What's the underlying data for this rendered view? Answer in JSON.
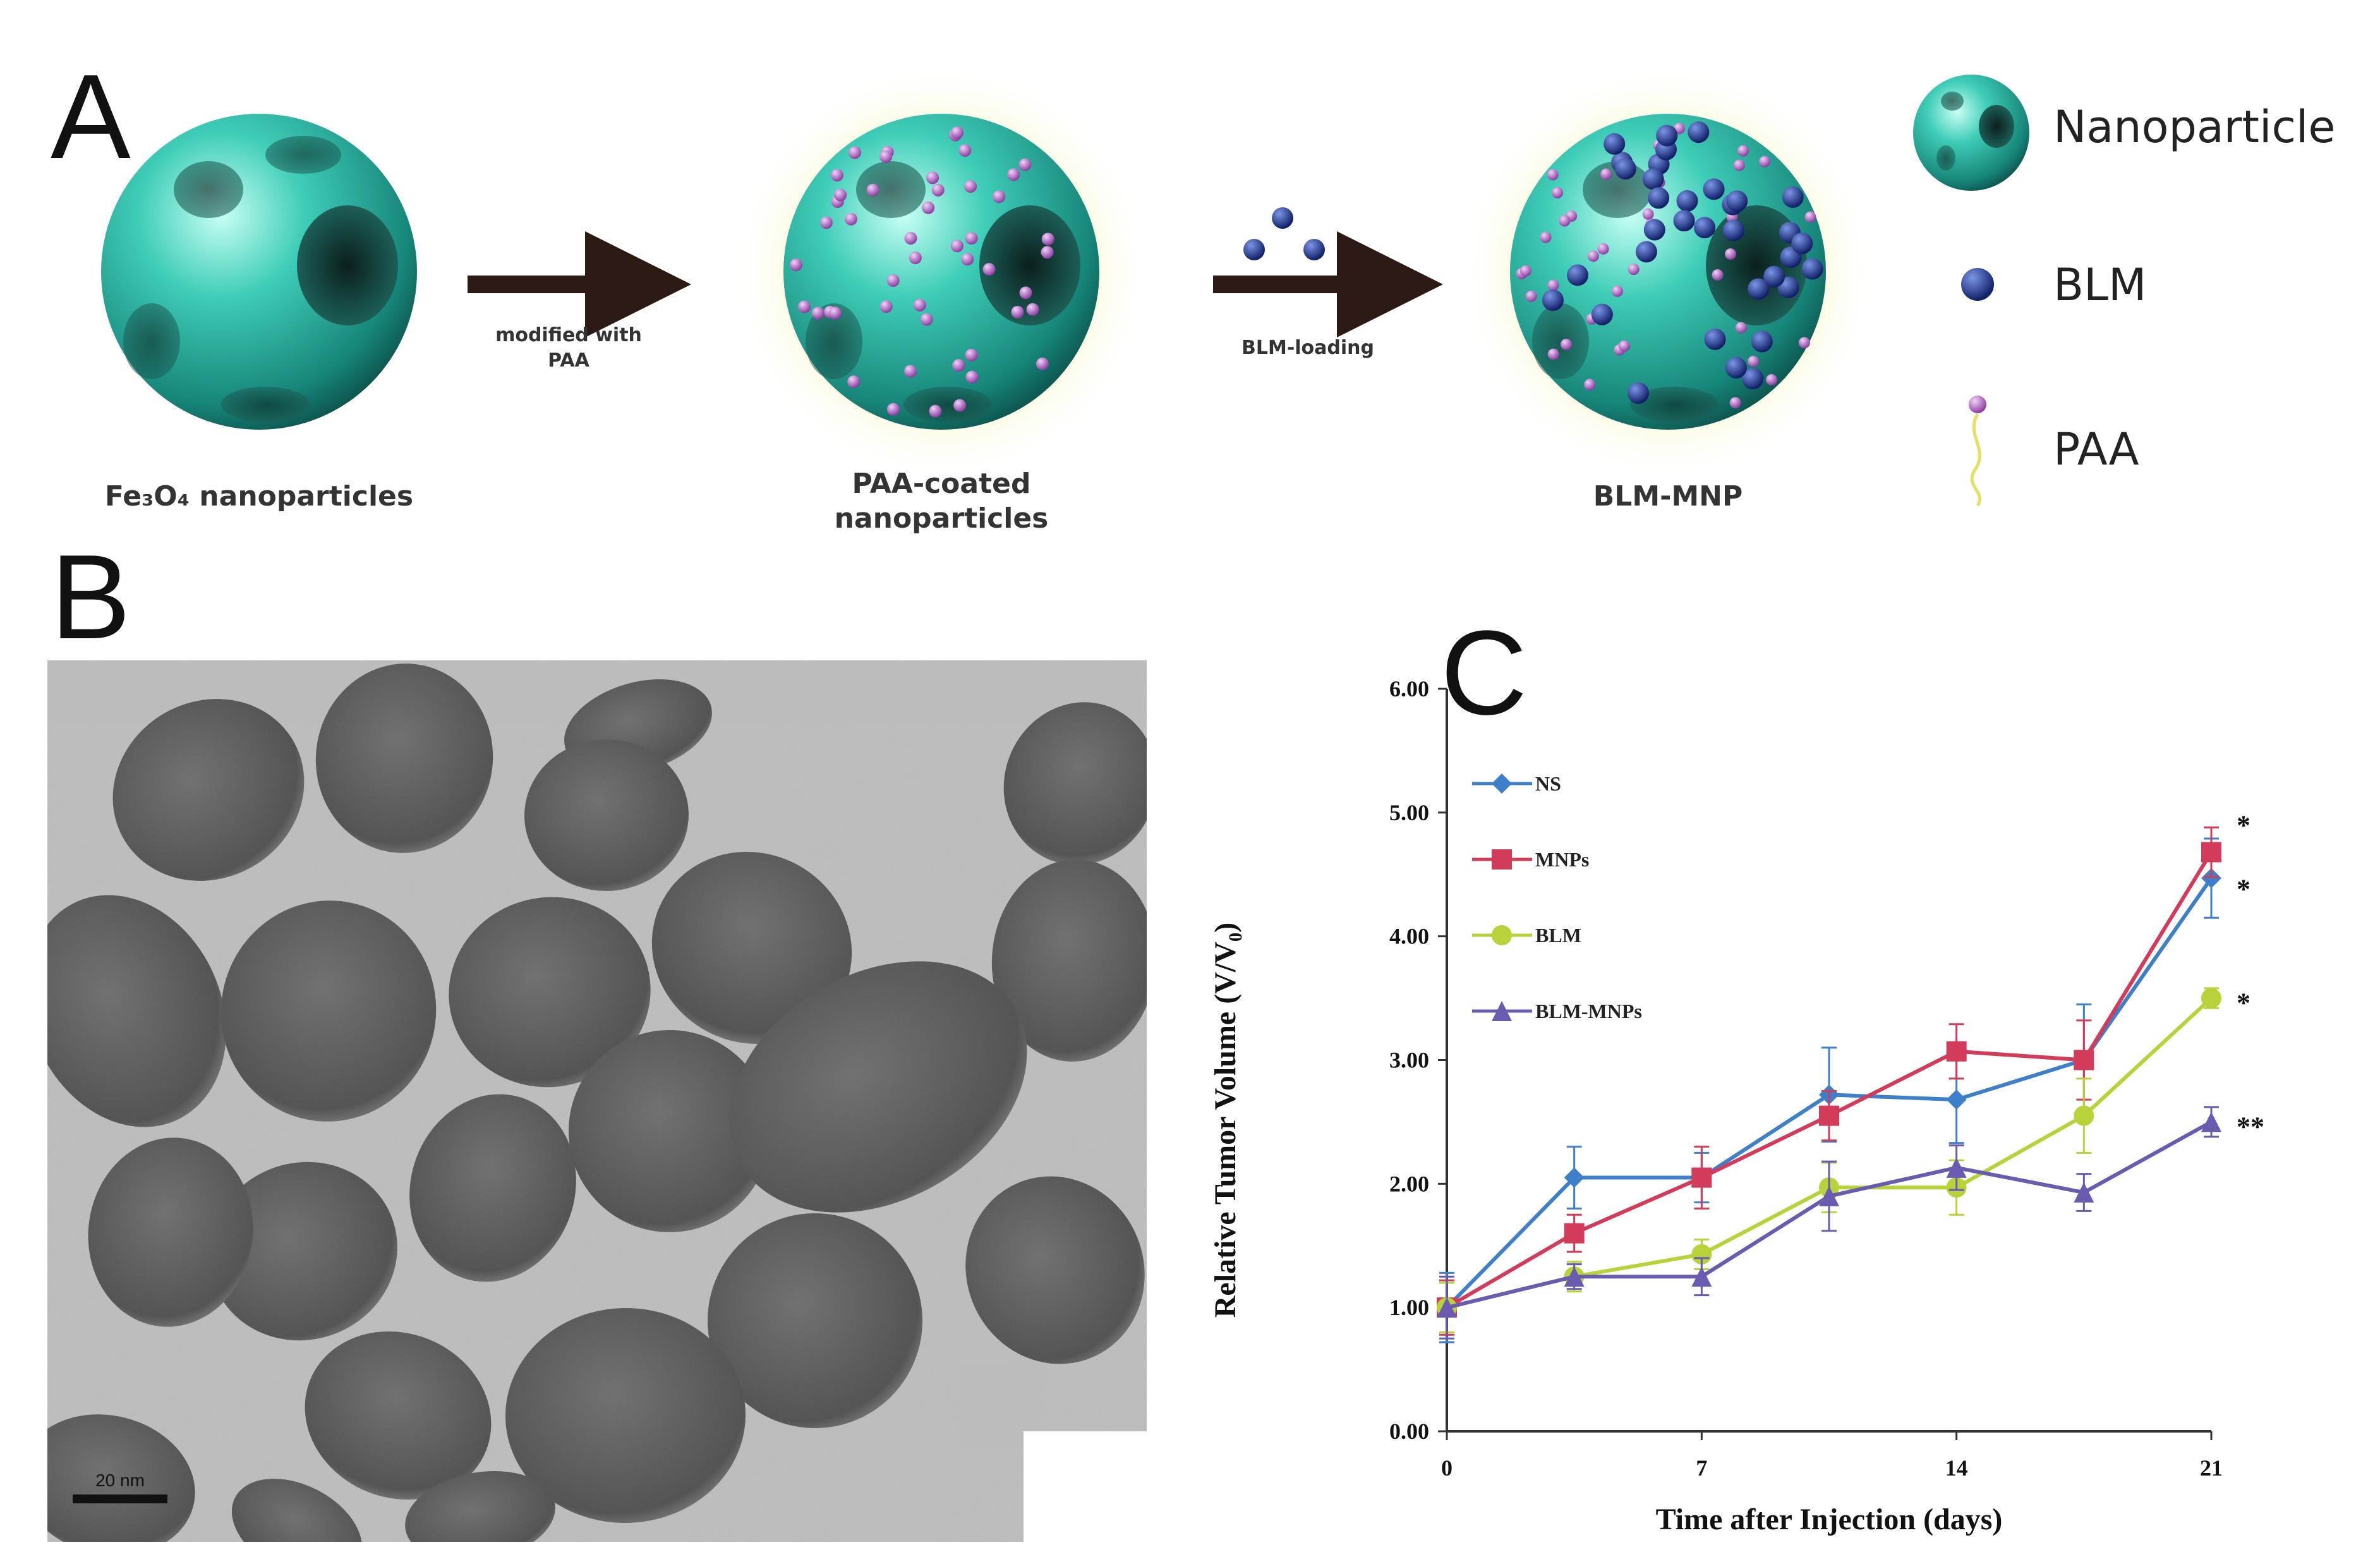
{
  "panels": {
    "a": "A",
    "b": "B",
    "c": "C"
  },
  "schematic": {
    "step1": "Fe₃O₄ nanoparticles",
    "step2_line1": "PAA-coated",
    "step2_line2": "nanoparticles",
    "step3": "BLM-MNP",
    "arrow1_line1": "modified with",
    "arrow1_line2": "PAA",
    "arrow2": "BLM-loading"
  },
  "legend": {
    "nanoparticle": "Nanoparticle",
    "blm": "BLM",
    "paa": "PAA"
  },
  "tem": {
    "scale_bar": "20 nm"
  },
  "colors": {
    "sphere": "#2bb5a4",
    "sphere_dark": "#0e5e57",
    "blm_bead": "#1b2f86",
    "paa_bead": "#b46bc6",
    "NS": "#3d7fc8",
    "MNPs": "#d23b5a",
    "BLM": "#b8d23a",
    "BLM-MNPs": "#6a5bb0"
  },
  "chart_data": {
    "type": "line",
    "xlabel": "Time after Injection (days)",
    "ylabel": "Relative Tumor Volume (V/V₀)",
    "xlim": [
      0,
      21
    ],
    "ylim": [
      0,
      6
    ],
    "x_ticks": [
      0,
      7,
      14,
      21
    ],
    "y_ticks": [
      "0.00",
      "1.00",
      "2.00",
      "3.00",
      "4.00",
      "5.00",
      "6.00"
    ],
    "x": [
      0,
      3.5,
      7,
      10.5,
      14,
      17.5,
      21
    ],
    "legend_position": "top-left",
    "series": [
      {
        "name": "NS",
        "marker": "diamond",
        "values": [
          1.0,
          2.05,
          2.05,
          2.72,
          2.68,
          3.0,
          4.47
        ],
        "errors": [
          0.28,
          0.25,
          0.2,
          0.38,
          0.35,
          0.45,
          0.32
        ],
        "sig": "*"
      },
      {
        "name": "MNPs",
        "marker": "square",
        "values": [
          1.0,
          1.6,
          2.05,
          2.55,
          3.07,
          3.0,
          4.68
        ],
        "errors": [
          0.22,
          0.15,
          0.25,
          0.2,
          0.22,
          0.32,
          0.2
        ],
        "sig": "*"
      },
      {
        "name": "BLM",
        "marker": "circle",
        "values": [
          1.0,
          1.25,
          1.43,
          1.97,
          1.97,
          2.55,
          3.5
        ],
        "errors": [
          0.2,
          0.12,
          0.12,
          0.2,
          0.22,
          0.3,
          0.08
        ],
        "sig": "*"
      },
      {
        "name": "BLM-MNPs",
        "marker": "triangle",
        "values": [
          1.0,
          1.25,
          1.25,
          1.9,
          2.13,
          1.93,
          2.5
        ],
        "errors": [
          0.25,
          0.1,
          0.15,
          0.28,
          0.18,
          0.15,
          0.12
        ],
        "sig": "**"
      }
    ]
  }
}
